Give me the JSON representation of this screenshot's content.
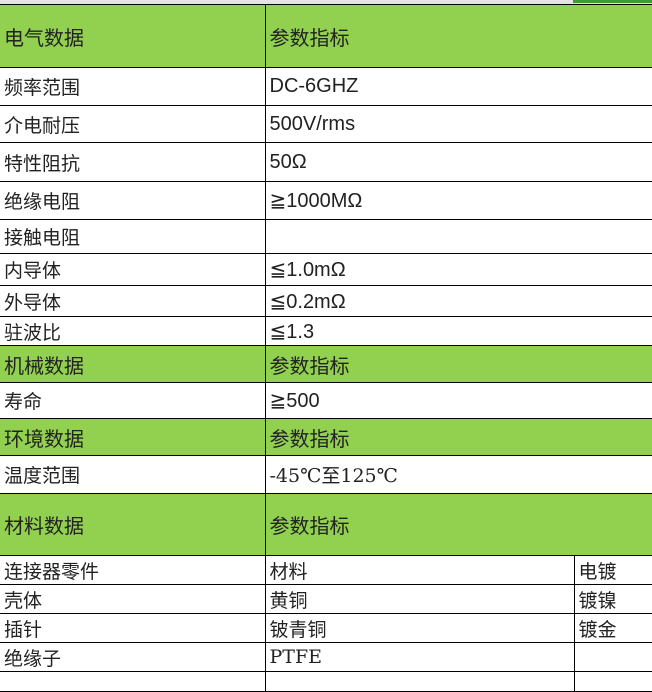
{
  "colors": {
    "header_bg": "#92d050",
    "accent": "#3f9a2f"
  },
  "electrical": {
    "header": "电气数据",
    "header_value": "参数指标",
    "rows": [
      {
        "label": "频率范围",
        "value": "DC-6GHZ"
      },
      {
        "label": "介电耐压",
        "value": "500V/rms"
      },
      {
        "label": "特性阻抗",
        "value": "50Ω"
      },
      {
        "label": "绝缘电阻",
        "value": "≧1000MΩ"
      },
      {
        "label": "接触电阻",
        "value": ""
      },
      {
        "label": "内导体",
        "value": "≦1.0mΩ"
      },
      {
        "label": "外导体",
        "value": "≦0.2mΩ"
      },
      {
        "label": "驻波比",
        "value": "≦1.3"
      }
    ]
  },
  "mechanical": {
    "header": "机械数据",
    "header_value": "参数指标",
    "rows": [
      {
        "label": "寿命",
        "value": "≧500"
      }
    ]
  },
  "environmental": {
    "header": "环境数据",
    "header_value": "参数指标",
    "rows": [
      {
        "label": "温度范围",
        "value": "-45℃至125℃"
      }
    ]
  },
  "material": {
    "header": "材料数据",
    "header_value": "参数指标",
    "rows": [
      {
        "label": "连接器零件",
        "material": "材料",
        "plating": "电镀"
      },
      {
        "label": "壳体",
        "material": "黄铜",
        "plating": "镀镍"
      },
      {
        "label": "插针",
        "material": "铍青铜",
        "plating": "镀金"
      },
      {
        "label": "绝缘子",
        "material": "PTFE",
        "plating": ""
      }
    ]
  }
}
